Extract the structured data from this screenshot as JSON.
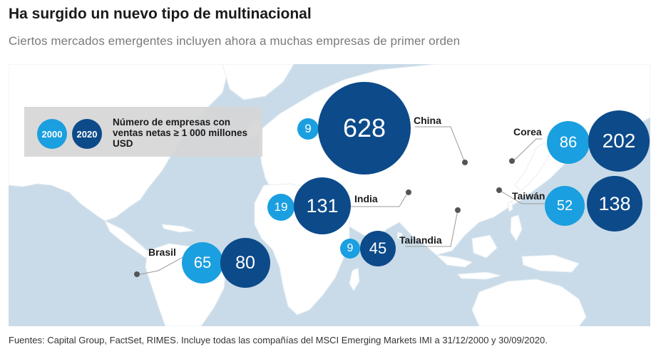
{
  "title": "Ha surgido un nuevo tipo de multinacional",
  "subtitle": "Ciertos mercados emergentes incluyen ahora a muchas empresas de primer orden",
  "legend": {
    "year_2000": "2000",
    "year_2020": "2020",
    "description": "Número de empresas con ventas netas ≥ 1 000 millones USD"
  },
  "countries": [
    {
      "name": "China",
      "v2000": "9",
      "v2020": "628"
    },
    {
      "name": "Corea",
      "v2000": "86",
      "v2020": "202"
    },
    {
      "name": "India",
      "v2000": "19",
      "v2020": "131"
    },
    {
      "name": "Taiwán",
      "v2000": "52",
      "v2020": "138"
    },
    {
      "name": "Tailandia",
      "v2000": "9",
      "v2020": "45"
    },
    {
      "name": "Brasil",
      "v2000": "65",
      "v2020": "80"
    }
  ],
  "colors": {
    "ocean": "#c9dbe8",
    "land": "#ffffff",
    "bubble_2000": "#1a9fe0",
    "bubble_2020": "#0c4a8a"
  },
  "footer": "Fuentes: Capital Group, FactSet, RIMES. Incluye todas las compañías del MSCI Emerging Markets IMI a 31/12/2000 y 30/09/2020."
}
